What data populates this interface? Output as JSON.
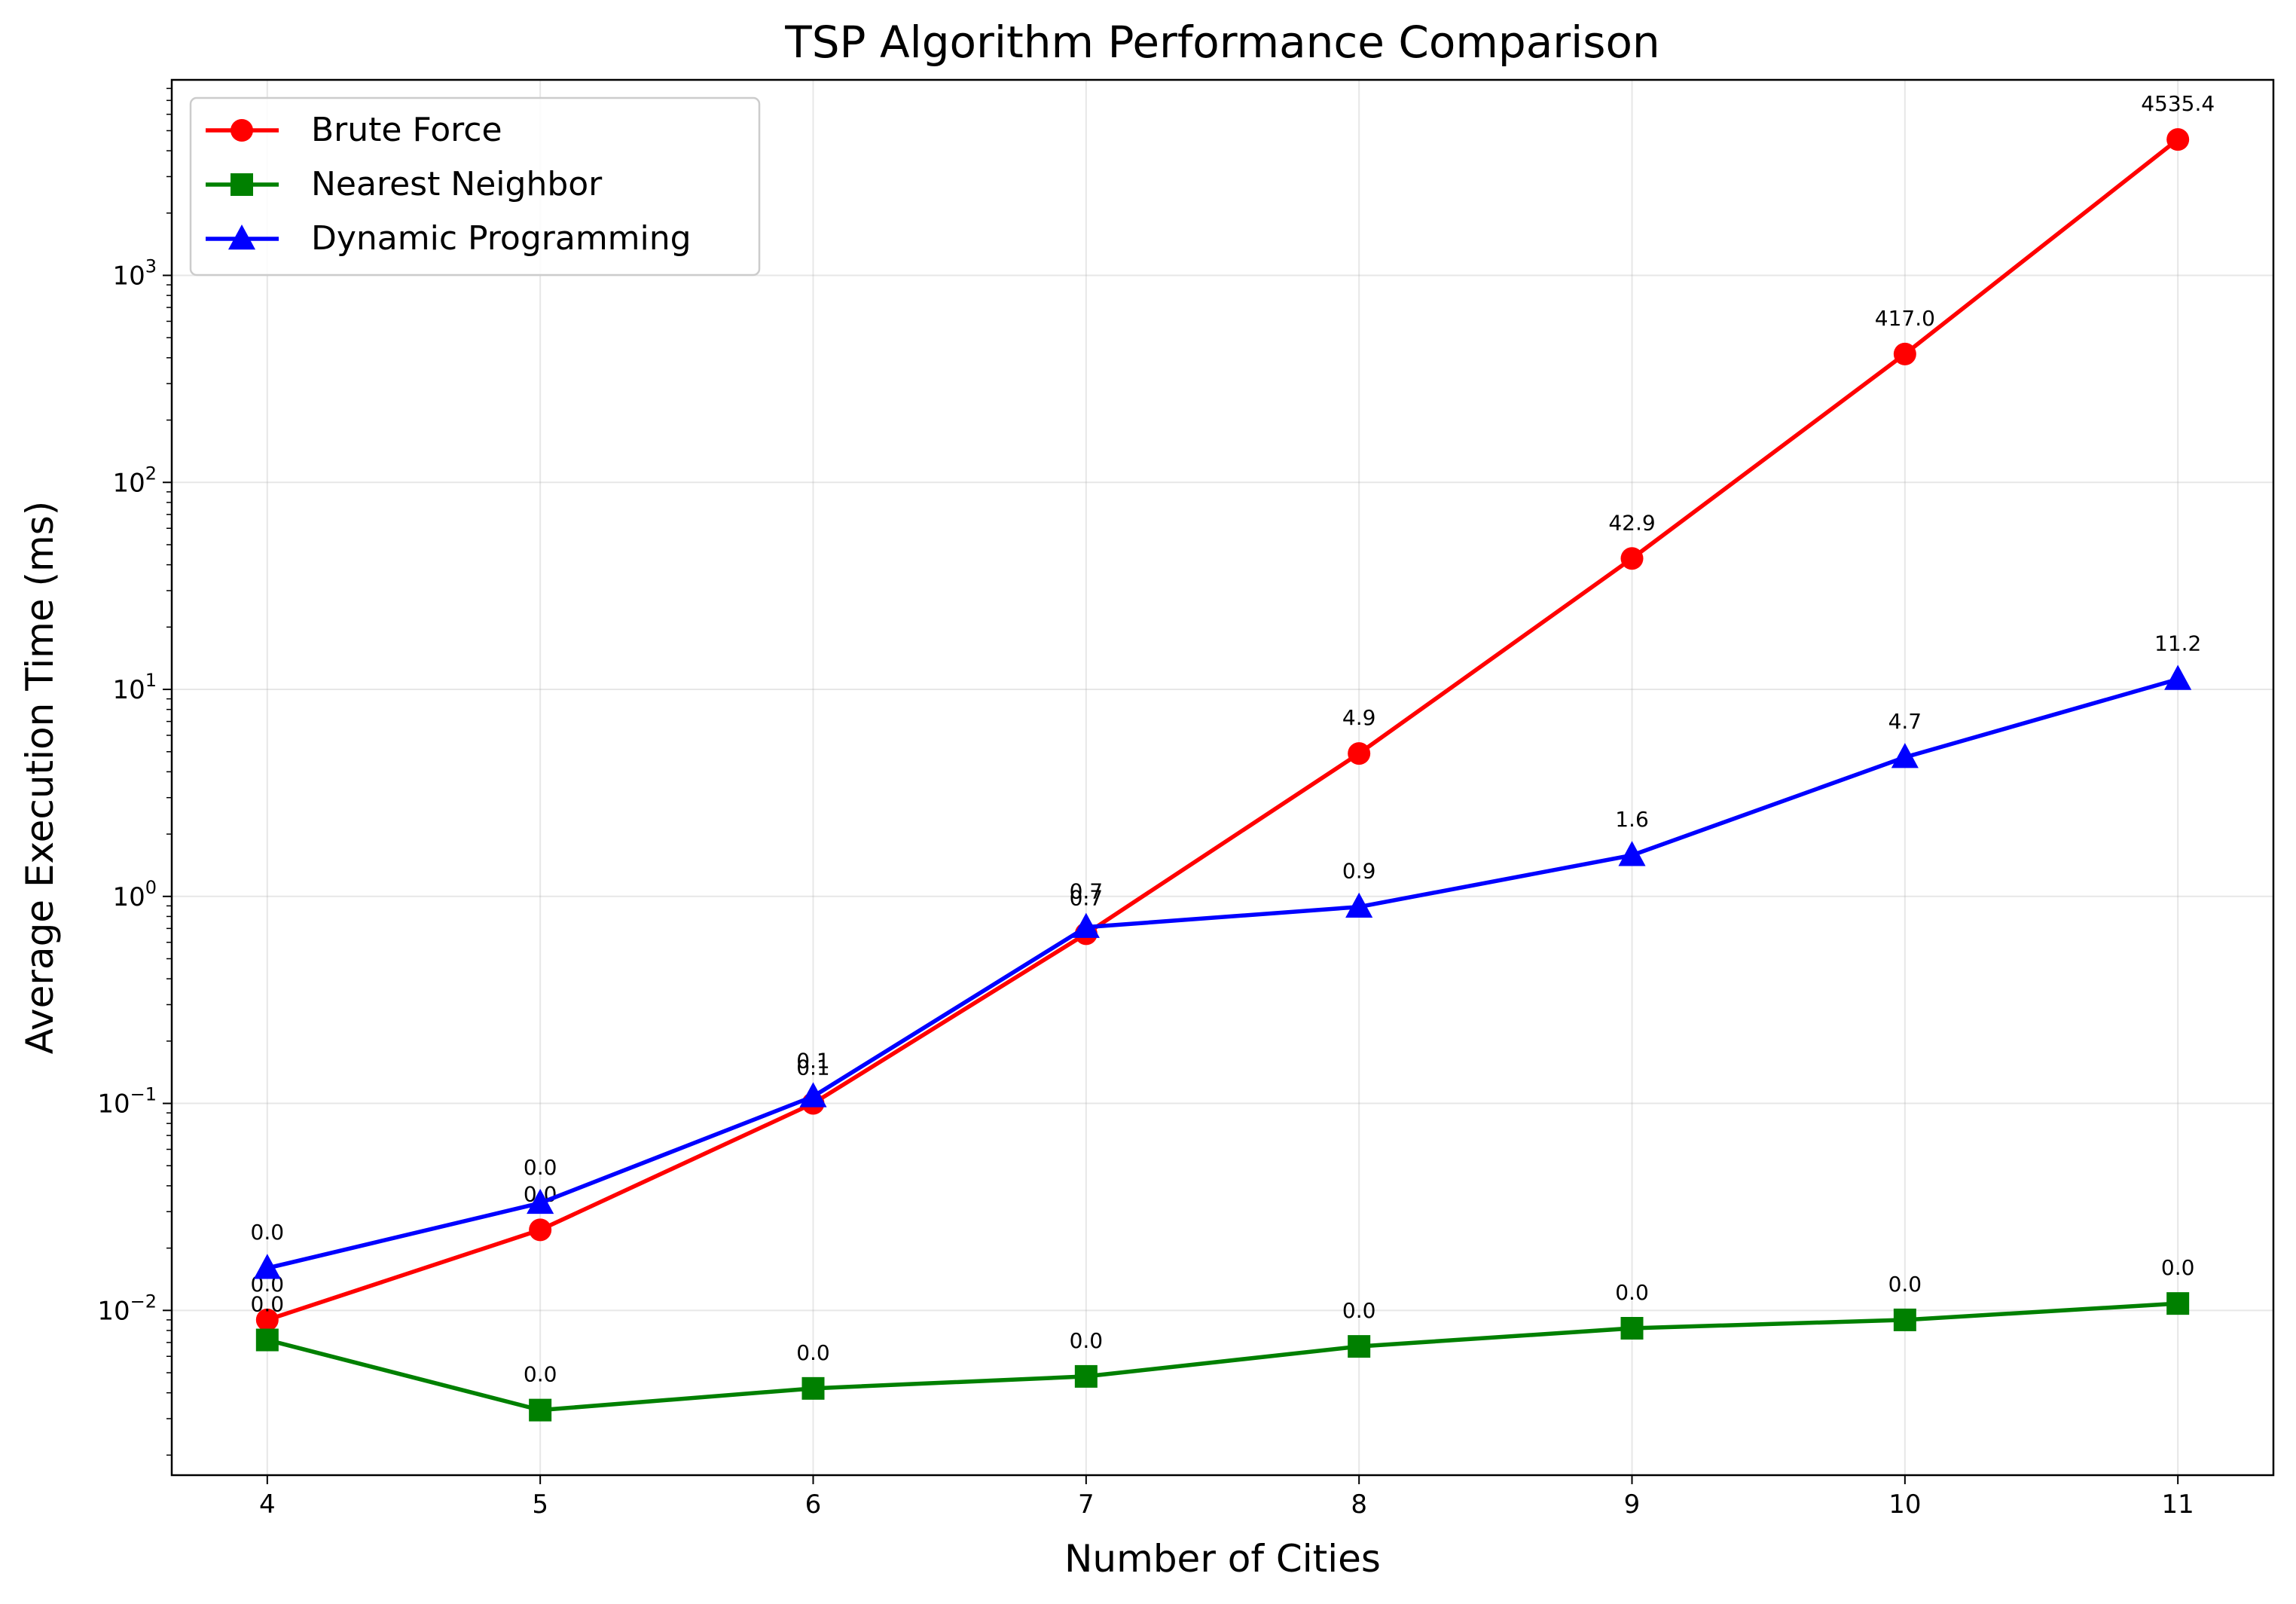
{
  "chart_data": {
    "type": "line",
    "title": "TSP Algorithm Performance Comparison",
    "xlabel": "Number of Cities",
    "ylabel": "Average Execution Time (ms)",
    "x": [
      4,
      5,
      6,
      7,
      8,
      9,
      10,
      11
    ],
    "xlim": [
      3.65,
      11.35
    ],
    "ylim": [
      0.0016,
      8800
    ],
    "yscale": "log",
    "y_ticks": [
      {
        "value": 0.01,
        "base": "10",
        "exp": "−2"
      },
      {
        "value": 0.1,
        "base": "10",
        "exp": "−1"
      },
      {
        "value": 1,
        "base": "10",
        "exp": "0"
      },
      {
        "value": 10,
        "base": "10",
        "exp": "1"
      },
      {
        "value": 100,
        "base": "10",
        "exp": "2"
      },
      {
        "value": 1000,
        "base": "10",
        "exp": "3"
      }
    ],
    "grid": true,
    "legend_position": "top-left",
    "series": [
      {
        "name": "Brute Force",
        "color": "#ff0000",
        "marker": "circle",
        "values": [
          0.009,
          0.0245,
          0.1,
          0.66,
          4.9,
          42.9,
          417.0,
          4535.4
        ],
        "labels": [
          "0.0",
          "0.0",
          "0.1",
          "0.7",
          "4.9",
          "42.9",
          "417.0",
          "4535.4"
        ]
      },
      {
        "name": "Nearest Neighbor",
        "color": "#008000",
        "marker": "square",
        "values": [
          0.0072,
          0.0033,
          0.0042,
          0.0048,
          0.0067,
          0.0082,
          0.009,
          0.0108
        ],
        "labels": [
          "0.0",
          "0.0",
          "0.0",
          "0.0",
          "0.0",
          "0.0",
          "0.0",
          "0.0"
        ]
      },
      {
        "name": "Dynamic Programming",
        "color": "#0000ff",
        "marker": "triangle",
        "values": [
          0.016,
          0.033,
          0.108,
          0.71,
          0.89,
          1.58,
          4.7,
          11.2
        ],
        "labels": [
          "0.0",
          "0.0",
          "0.1",
          "0.7",
          "0.9",
          "1.6",
          "4.7",
          "11.2"
        ]
      }
    ]
  }
}
